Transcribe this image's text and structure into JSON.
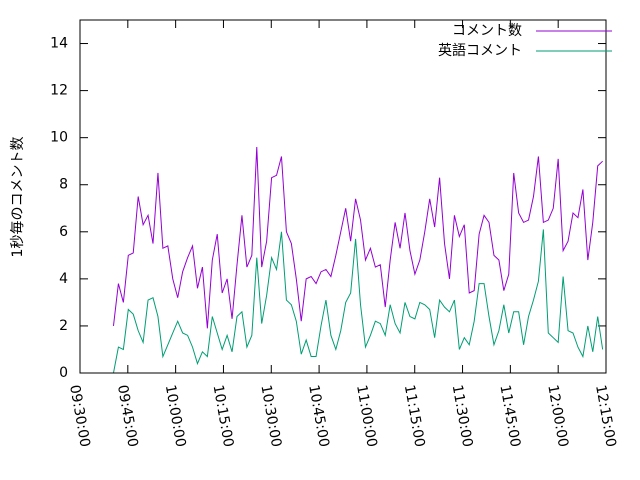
{
  "chart_data": {
    "type": "line",
    "y_label": "1秒毎のコメント数",
    "x": [
      "09:40:30",
      "09:42:03",
      "09:43:36",
      "09:45:09",
      "09:46:42",
      "09:48:15",
      "09:49:48",
      "09:51:21",
      "09:52:54",
      "09:54:27",
      "09:56:00",
      "09:57:33",
      "09:59:06",
      "10:00:39",
      "10:02:12",
      "10:03:45",
      "10:05:18",
      "10:06:51",
      "10:08:24",
      "10:09:57",
      "10:11:30",
      "10:13:03",
      "10:14:36",
      "10:16:09",
      "10:17:42",
      "10:19:15",
      "10:20:48",
      "10:22:21",
      "10:23:54",
      "10:25:27",
      "10:27:00",
      "10:28:33",
      "10:30:06",
      "10:31:39",
      "10:33:12",
      "10:34:45",
      "10:36:18",
      "10:37:51",
      "10:39:24",
      "10:40:57",
      "10:42:30",
      "10:44:03",
      "10:45:36",
      "10:47:09",
      "10:48:42",
      "10:50:15",
      "10:51:48",
      "10:53:21",
      "10:54:54",
      "10:56:27",
      "10:58:00",
      "10:59:33",
      "11:01:06",
      "11:02:39",
      "11:04:12",
      "11:05:45",
      "11:07:18",
      "11:08:51",
      "11:10:24",
      "11:11:57",
      "11:13:30",
      "11:15:03",
      "11:16:36",
      "11:18:09",
      "11:19:42",
      "11:21:15",
      "11:22:48",
      "11:24:21",
      "11:25:54",
      "11:27:27",
      "11:29:00",
      "11:30:33",
      "11:32:06",
      "11:33:39",
      "11:35:12",
      "11:36:45",
      "11:38:18",
      "11:39:51",
      "11:41:24",
      "11:42:57",
      "11:44:30",
      "11:46:03",
      "11:47:36",
      "11:49:09",
      "11:50:42",
      "11:52:15",
      "11:53:48",
      "11:55:21",
      "11:56:54",
      "11:58:27",
      "12:00:00",
      "12:01:33",
      "12:03:06",
      "12:04:39",
      "12:06:12",
      "12:07:45",
      "12:09:18",
      "12:10:51",
      "12:12:24",
      "12:13:57"
    ],
    "series": [
      {
        "name": "コメント数",
        "color": "#9400d3",
        "values": [
          2.0,
          3.8,
          3.0,
          5.0,
          5.1,
          7.5,
          6.3,
          6.7,
          5.5,
          8.5,
          5.3,
          5.4,
          4.0,
          3.2,
          4.3,
          4.9,
          5.4,
          3.6,
          4.5,
          1.9,
          4.8,
          5.9,
          3.4,
          4.0,
          2.3,
          4.6,
          6.7,
          4.5,
          5.0,
          9.6,
          4.5,
          5.6,
          8.3,
          8.4,
          9.2,
          6.0,
          5.5,
          4.0,
          2.2,
          4.0,
          4.1,
          3.8,
          4.3,
          4.4,
          4.1,
          5.0,
          6.0,
          7.0,
          5.6,
          7.4,
          6.5,
          4.8,
          5.3,
          4.5,
          4.6,
          2.8,
          4.8,
          6.4,
          5.3,
          6.8,
          5.2,
          4.2,
          4.8,
          6.0,
          7.4,
          6.2,
          8.3,
          5.5,
          4.0,
          6.7,
          5.8,
          6.3,
          3.4,
          3.5,
          5.9,
          6.7,
          6.4,
          5.0,
          4.8,
          3.5,
          4.2,
          8.5,
          6.8,
          6.4,
          6.5,
          7.5,
          9.2,
          6.4,
          6.5,
          7.0,
          9.1,
          5.2,
          5.6,
          6.8,
          6.6,
          7.8,
          4.8,
          6.4,
          8.8,
          9.0
        ]
      },
      {
        "name": "英語コメント",
        "color": "#009e73",
        "values": [
          0.0,
          1.1,
          1.0,
          2.7,
          2.5,
          1.8,
          1.3,
          3.1,
          3.2,
          2.4,
          0.7,
          1.2,
          1.7,
          2.2,
          1.7,
          1.6,
          1.1,
          0.4,
          0.9,
          0.7,
          2.4,
          1.7,
          1.0,
          1.6,
          0.9,
          2.4,
          2.6,
          1.1,
          1.6,
          4.9,
          2.1,
          3.3,
          4.9,
          4.4,
          6.0,
          3.1,
          2.9,
          2.2,
          0.8,
          1.4,
          0.7,
          0.7,
          2.0,
          3.1,
          1.6,
          1.0,
          1.8,
          3.0,
          3.4,
          5.7,
          2.9,
          1.1,
          1.6,
          2.2,
          2.1,
          1.6,
          2.9,
          2.1,
          1.7,
          3.0,
          2.4,
          2.3,
          3.0,
          2.9,
          2.7,
          1.5,
          3.1,
          2.8,
          2.6,
          3.1,
          1.0,
          1.5,
          1.2,
          2.2,
          3.8,
          3.8,
          2.4,
          1.2,
          1.8,
          2.9,
          1.7,
          2.6,
          2.6,
          1.2,
          2.4,
          3.1,
          3.9,
          6.1,
          1.7,
          1.5,
          1.3,
          4.1,
          1.8,
          1.7,
          1.1,
          0.7,
          2.0,
          0.9,
          2.4,
          1.0
        ]
      }
    ],
    "xlim": [
      "09:30:00",
      "12:15:00"
    ],
    "xticks": [
      "09:30:00",
      "09:45:00",
      "10:00:00",
      "10:15:00",
      "10:30:00",
      "10:45:00",
      "11:00:00",
      "11:15:00",
      "11:30:00",
      "11:45:00",
      "12:00:00",
      "12:15:00"
    ],
    "ylim": [
      0,
      15
    ],
    "yticks": [
      0,
      2,
      4,
      6,
      8,
      10,
      12,
      14
    ],
    "grid": false,
    "legend": "top-right"
  }
}
